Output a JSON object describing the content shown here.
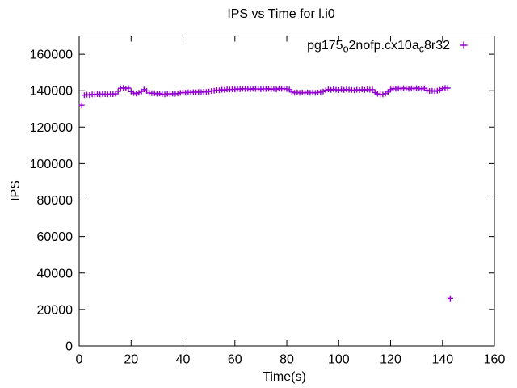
{
  "colors": {
    "background": "#ffffff",
    "axis": "#000000",
    "text": "#000000",
    "series1": "#9400d3"
  },
  "chart_data": {
    "type": "scatter",
    "title": "IPS vs Time for l.i0",
    "xlabel": "Time(s)",
    "ylabel": "IPS",
    "xlim": [
      0,
      160
    ],
    "ylim": [
      0,
      170000
    ],
    "xticks": [
      0,
      20,
      40,
      60,
      80,
      100,
      120,
      140,
      160
    ],
    "yticks": [
      0,
      20000,
      40000,
      60000,
      80000,
      100000,
      120000,
      140000,
      160000
    ],
    "grid": false,
    "marker_style": "plus",
    "legend": {
      "position": "top-right-inside",
      "entries": [
        {
          "label_raw": "pg175_o2nofp.cx10a_c8r32",
          "label_parts": [
            {
              "text": "pg175",
              "sub": false
            },
            {
              "text": "o",
              "sub": true
            },
            {
              "text": "2nofp.cx10a",
              "sub": false
            },
            {
              "text": "c",
              "sub": true
            },
            {
              "text": "8r32",
              "sub": false
            }
          ],
          "marker": "plus",
          "color": "#9400d3"
        }
      ]
    },
    "series": [
      {
        "name": "pg175_o2nofp.cx10a_c8r32",
        "marker": "plus",
        "color": "#9400d3",
        "points": [
          [
            1,
            132000
          ],
          [
            2,
            137500
          ],
          [
            3,
            137800
          ],
          [
            4,
            137600
          ],
          [
            5,
            138000
          ],
          [
            6,
            137900
          ],
          [
            7,
            138100
          ],
          [
            8,
            138000
          ],
          [
            9,
            138200
          ],
          [
            10,
            138100
          ],
          [
            11,
            138000
          ],
          [
            12,
            138200
          ],
          [
            13,
            138100
          ],
          [
            14,
            138300
          ],
          [
            15,
            139600
          ],
          [
            16,
            141300
          ],
          [
            17,
            141500
          ],
          [
            18,
            141200
          ],
          [
            19,
            141400
          ],
          [
            20,
            139500
          ],
          [
            21,
            138700
          ],
          [
            22,
            138400
          ],
          [
            23,
            138900
          ],
          [
            24,
            139600
          ],
          [
            25,
            140600
          ],
          [
            26,
            139900
          ],
          [
            27,
            138800
          ],
          [
            28,
            138600
          ],
          [
            29,
            138600
          ],
          [
            30,
            138300
          ],
          [
            31,
            138500
          ],
          [
            32,
            138100
          ],
          [
            33,
            138000
          ],
          [
            34,
            138300
          ],
          [
            35,
            138200
          ],
          [
            36,
            138400
          ],
          [
            37,
            138300
          ],
          [
            38,
            138500
          ],
          [
            39,
            138800
          ],
          [
            40,
            139000
          ],
          [
            41,
            138900
          ],
          [
            42,
            139100
          ],
          [
            43,
            139000
          ],
          [
            44,
            139200
          ],
          [
            45,
            139100
          ],
          [
            46,
            139300
          ],
          [
            47,
            139200
          ],
          [
            48,
            139400
          ],
          [
            49,
            139300
          ],
          [
            50,
            139500
          ],
          [
            51,
            139800
          ],
          [
            52,
            140000
          ],
          [
            53,
            140300
          ],
          [
            54,
            140200
          ],
          [
            55,
            140500
          ],
          [
            56,
            140400
          ],
          [
            57,
            140700
          ],
          [
            58,
            140600
          ],
          [
            59,
            140800
          ],
          [
            60,
            140700
          ],
          [
            61,
            141000
          ],
          [
            62,
            140800
          ],
          [
            63,
            141100
          ],
          [
            64,
            140900
          ],
          [
            65,
            141000
          ],
          [
            66,
            140800
          ],
          [
            67,
            141100
          ],
          [
            68,
            140900
          ],
          [
            69,
            141000
          ],
          [
            70,
            140800
          ],
          [
            71,
            141000
          ],
          [
            72,
            140900
          ],
          [
            73,
            141100
          ],
          [
            74,
            140800
          ],
          [
            75,
            141000
          ],
          [
            76,
            140700
          ],
          [
            77,
            141200
          ],
          [
            78,
            141000
          ],
          [
            79,
            141100
          ],
          [
            80,
            140900
          ],
          [
            81,
            140600
          ],
          [
            82,
            139300
          ],
          [
            83,
            138900
          ],
          [
            84,
            139100
          ],
          [
            85,
            138800
          ],
          [
            86,
            139000
          ],
          [
            87,
            138800
          ],
          [
            88,
            139100
          ],
          [
            89,
            138900
          ],
          [
            90,
            139000
          ],
          [
            91,
            138800
          ],
          [
            92,
            139000
          ],
          [
            93,
            139200
          ],
          [
            94,
            139500
          ],
          [
            95,
            140200
          ],
          [
            96,
            140700
          ],
          [
            97,
            140400
          ],
          [
            98,
            140800
          ],
          [
            99,
            140500
          ],
          [
            100,
            140300
          ],
          [
            101,
            140600
          ],
          [
            102,
            140400
          ],
          [
            103,
            140700
          ],
          [
            104,
            140500
          ],
          [
            105,
            140400
          ],
          [
            106,
            140200
          ],
          [
            107,
            140500
          ],
          [
            108,
            140300
          ],
          [
            109,
            140600
          ],
          [
            110,
            140400
          ],
          [
            111,
            140700
          ],
          [
            112,
            140500
          ],
          [
            113,
            140600
          ],
          [
            114,
            139000
          ],
          [
            115,
            138300
          ],
          [
            116,
            138000
          ],
          [
            117,
            137900
          ],
          [
            118,
            138400
          ],
          [
            119,
            139300
          ],
          [
            120,
            140600
          ],
          [
            121,
            141200
          ],
          [
            122,
            141000
          ],
          [
            123,
            141300
          ],
          [
            124,
            141100
          ],
          [
            125,
            141400
          ],
          [
            126,
            141200
          ],
          [
            127,
            141000
          ],
          [
            128,
            141300
          ],
          [
            129,
            141100
          ],
          [
            130,
            141400
          ],
          [
            131,
            141200
          ],
          [
            132,
            141000
          ],
          [
            133,
            141300
          ],
          [
            134,
            140300
          ],
          [
            135,
            139800
          ],
          [
            136,
            140000
          ],
          [
            137,
            139700
          ],
          [
            138,
            140000
          ],
          [
            139,
            140400
          ],
          [
            140,
            141200
          ],
          [
            141,
            141500
          ],
          [
            142,
            141400
          ],
          [
            143,
            26000
          ]
        ]
      }
    ]
  }
}
